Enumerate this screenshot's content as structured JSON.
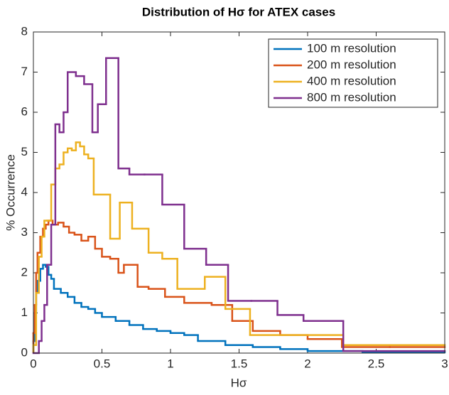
{
  "chart_data": {
    "type": "histogram",
    "title": "Distribution of Hσ for ATEX cases",
    "xlabel": "Hσ",
    "ylabel": "% Occurrence",
    "xlim": [
      0,
      3
    ],
    "xticks": [
      0,
      0.5,
      1,
      1.5,
      2,
      2.5,
      3
    ],
    "ylim": [
      0,
      8
    ],
    "yticks": [
      0,
      1,
      2,
      3,
      4,
      5,
      6,
      7,
      8
    ],
    "legend": "top-right",
    "series": [
      {
        "name": "100 m resolution",
        "color": "#0072BD",
        "bins": [
          0,
          0.01,
          0.02,
          0.03,
          0.05,
          0.07,
          0.09,
          0.11,
          0.13,
          0.15,
          0.2,
          0.25,
          0.3,
          0.35,
          0.4,
          0.45,
          0.5,
          0.6,
          0.7,
          0.8,
          0.9,
          1.0,
          1.1,
          1.2,
          1.4,
          1.6,
          1.8,
          2.0,
          2.4,
          3.0
        ],
        "values": [
          0.3,
          1.0,
          1.5,
          1.8,
          2.1,
          2.2,
          2.15,
          1.95,
          1.85,
          1.6,
          1.5,
          1.4,
          1.25,
          1.15,
          1.1,
          1.0,
          0.9,
          0.8,
          0.7,
          0.6,
          0.55,
          0.5,
          0.45,
          0.3,
          0.2,
          0.15,
          0.1,
          0.05,
          0.02
        ]
      },
      {
        "name": "200 m resolution",
        "color": "#D95319",
        "bins": [
          0,
          0.01,
          0.02,
          0.03,
          0.05,
          0.07,
          0.09,
          0.11,
          0.14,
          0.18,
          0.22,
          0.26,
          0.3,
          0.35,
          0.4,
          0.45,
          0.5,
          0.56,
          0.62,
          0.66,
          0.76,
          0.84,
          0.96,
          1.1,
          1.3,
          1.45,
          1.6,
          1.8,
          2.0,
          2.25,
          2.6,
          3.0
        ],
        "values": [
          0.5,
          1.2,
          2.0,
          2.5,
          2.9,
          3.1,
          3.2,
          3.3,
          3.2,
          3.25,
          3.15,
          3.0,
          2.95,
          2.8,
          2.9,
          2.6,
          2.4,
          2.35,
          2.0,
          2.2,
          1.65,
          1.6,
          1.4,
          1.25,
          1.2,
          0.8,
          0.55,
          0.45,
          0.35,
          0.15,
          0.15
        ]
      },
      {
        "name": "400 m resolution",
        "color": "#EDB120",
        "bins": [
          0,
          0.02,
          0.04,
          0.06,
          0.08,
          0.1,
          0.13,
          0.16,
          0.19,
          0.22,
          0.25,
          0.28,
          0.31,
          0.34,
          0.37,
          0.4,
          0.44,
          0.56,
          0.63,
          0.72,
          0.84,
          0.94,
          1.05,
          1.25,
          1.4,
          1.58,
          2.26,
          3.0
        ],
        "values": [
          0.2,
          1.5,
          2.4,
          2.9,
          3.3,
          3.3,
          4.2,
          4.6,
          4.7,
          5.0,
          5.1,
          5.05,
          5.25,
          5.15,
          4.95,
          4.85,
          3.95,
          2.85,
          3.75,
          3.1,
          2.5,
          2.35,
          1.6,
          1.9,
          1.1,
          0.45,
          0.2
        ]
      },
      {
        "name": "800 m resolution",
        "color": "#7E2F8E",
        "bins": [
          0,
          0.04,
          0.06,
          0.08,
          0.1,
          0.13,
          0.16,
          0.19,
          0.22,
          0.25,
          0.31,
          0.37,
          0.43,
          0.47,
          0.53,
          0.62,
          0.7,
          0.81,
          0.94,
          1.1,
          1.26,
          1.42,
          1.59,
          1.78,
          1.97,
          2.26,
          3.0
        ],
        "values": [
          0,
          0.3,
          0.8,
          1.2,
          2.2,
          3.2,
          5.7,
          5.5,
          6.0,
          7.0,
          6.9,
          6.7,
          5.5,
          6.2,
          7.35,
          4.6,
          4.45,
          4.45,
          3.7,
          2.6,
          2.2,
          1.3,
          1.3,
          0.95,
          0.8,
          0.05
        ]
      }
    ]
  }
}
